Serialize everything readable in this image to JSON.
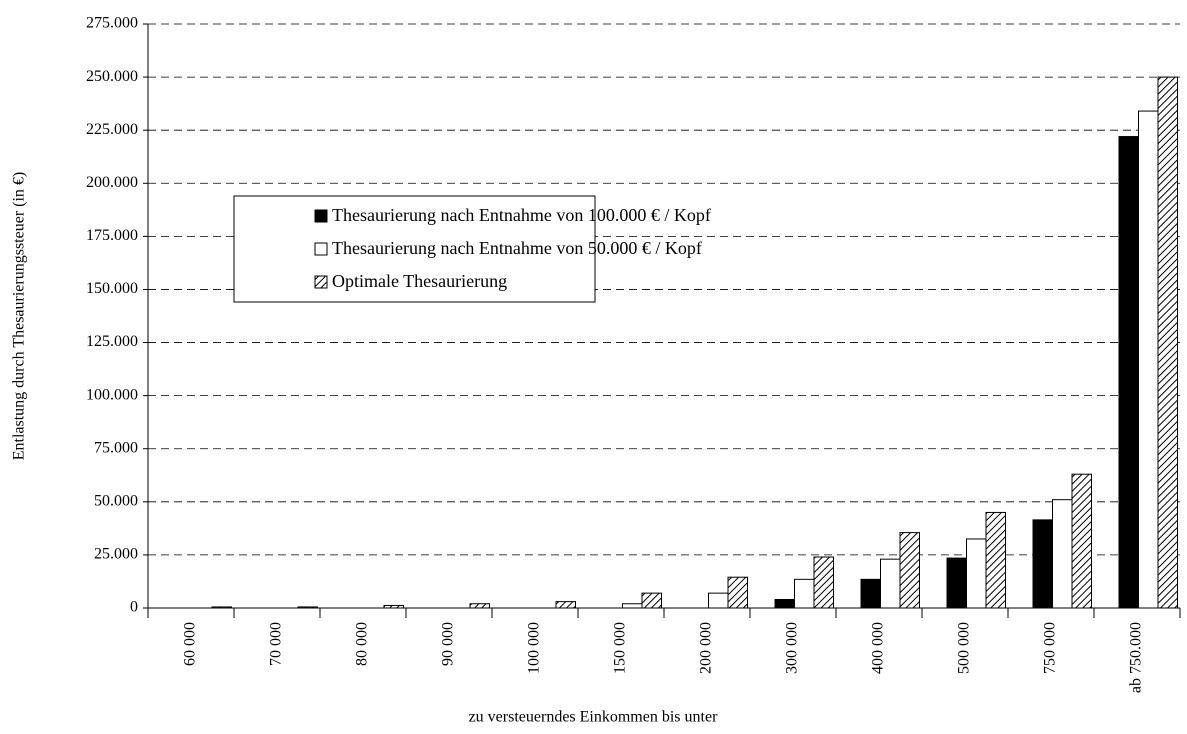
{
  "chart_data": {
    "type": "bar",
    "categories": [
      "60 000",
      "70 000",
      "80 000",
      "90 000",
      "100 000",
      "150 000",
      "200 000",
      "300 000",
      "400 000",
      "500 000",
      "750 000",
      "ab 750.000"
    ],
    "series": [
      {
        "name": "Thesaurierung nach Entnahme von 100.000 € / Kopf",
        "color": "#000000",
        "values": [
          0,
          0,
          0,
          0,
          0,
          0,
          0,
          4000,
          13500,
          23500,
          41500,
          222000
        ]
      },
      {
        "name": "Thesaurierung nach Entnahme von 50.000 € / Kopf",
        "color": "#ffffff",
        "values": [
          0,
          0,
          0,
          0,
          0,
          2000,
          7000,
          13500,
          23000,
          32500,
          51000,
          234000
        ]
      },
      {
        "name": "Optimale Thesaurierung",
        "color": "#000000",
        "hatch": true,
        "values": [
          500,
          500,
          1200,
          2000,
          3000,
          7000,
          14500,
          24000,
          35500,
          45000,
          63000,
          250000
        ]
      }
    ],
    "ylim": [
      0,
      275000
    ],
    "yticks": [
      0,
      {
        "value": 25000,
        "label": "25.000"
      },
      {
        "value": 50000,
        "label": "50.000"
      },
      {
        "value": 75000,
        "label": "75.000"
      },
      {
        "value": 100000,
        "label": "100.000"
      },
      {
        "value": 125000,
        "label": "125.000"
      },
      {
        "value": 150000,
        "label": "150.000"
      },
      {
        "value": 175000,
        "label": "175.000"
      },
      {
        "value": 200000,
        "label": "200.000"
      },
      {
        "value": 225000,
        "label": "225.000"
      },
      {
        "value": 250000,
        "label": "250.000"
      },
      {
        "value": 275000,
        "label": "275.000"
      }
    ],
    "grid": true,
    "x_label": "zu versteuerndes Einkommen bis unter",
    "y_label": "Entlastung durch Thesaurierungssteuer (in €)"
  }
}
